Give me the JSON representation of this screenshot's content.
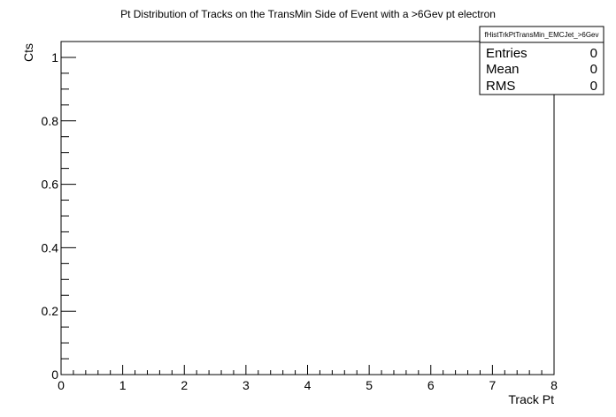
{
  "chart_data": {
    "type": "bar",
    "title": "Pt Distribution of Tracks on the TransMin Side of Event with a >6Gev pt electron",
    "xlabel": "Track Pt",
    "ylabel": "Cts",
    "xlim": [
      0,
      8
    ],
    "ylim": [
      0,
      1.05
    ],
    "x_ticks": [
      "0",
      "1",
      "2",
      "3",
      "4",
      "5",
      "6",
      "7",
      "8"
    ],
    "y_ticks": [
      "0",
      "0.2",
      "0.4",
      "0.6",
      "0.8",
      "1"
    ],
    "x_tick_values": [
      0,
      1,
      2,
      3,
      4,
      5,
      6,
      7,
      8
    ],
    "y_tick_values": [
      0,
      0.2,
      0.4,
      0.6,
      0.8,
      1
    ],
    "x_minor_step": 0.2,
    "y_minor_step": 0.05,
    "grid": false,
    "series": [],
    "stats_box": {
      "name": "fHistTrkPtTransMin_EMCJet_>6Gev",
      "rows": [
        {
          "label": "Entries",
          "value": "0"
        },
        {
          "label": "Mean",
          "value": "0"
        },
        {
          "label": "RMS",
          "value": "0"
        }
      ]
    }
  },
  "colors": {
    "frame": "#000000",
    "background": "#ffffff"
  }
}
